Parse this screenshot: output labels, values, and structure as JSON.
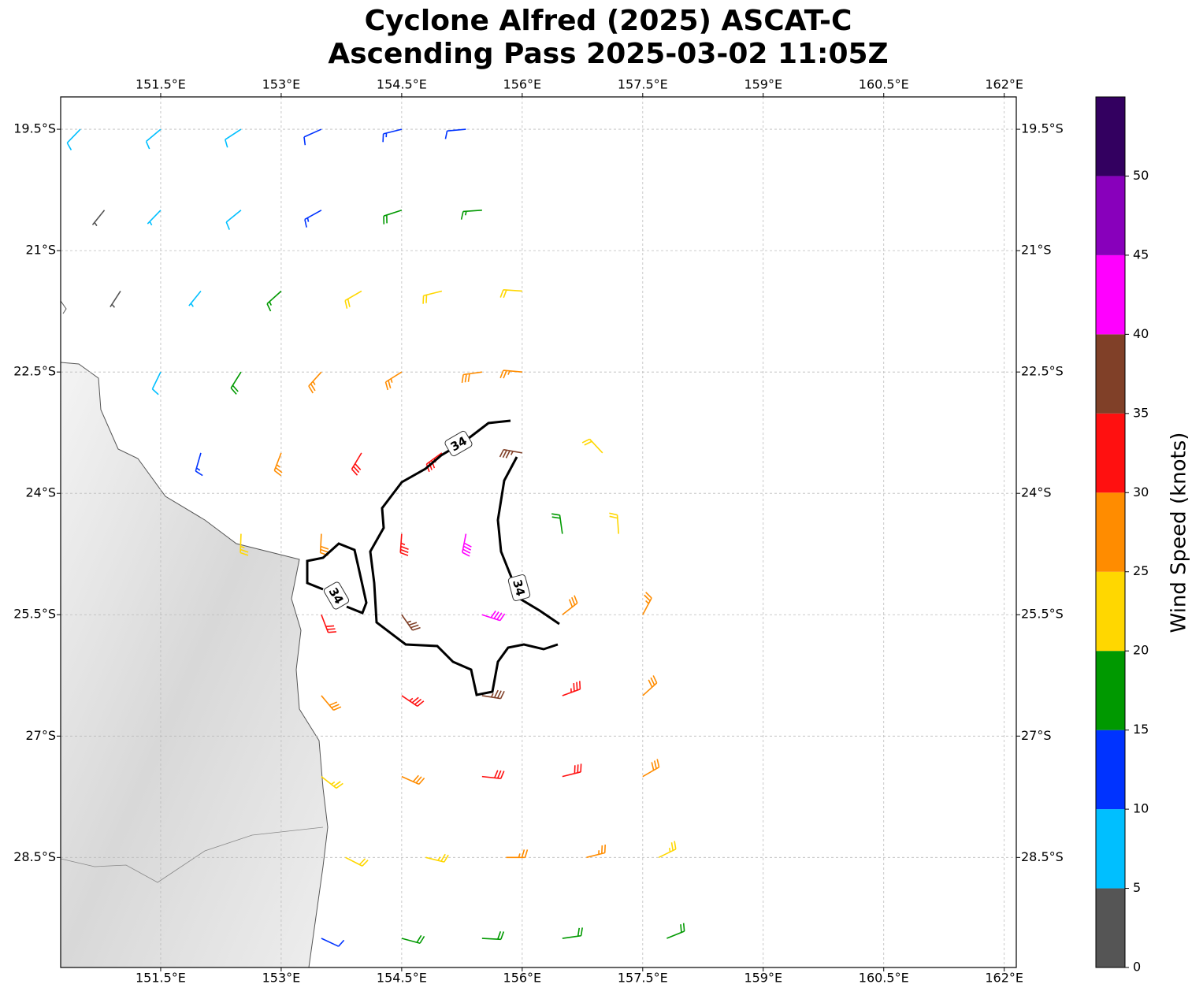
{
  "chart_data": {
    "type": "barbs",
    "title": [
      "Cyclone Alfred (2025) ASCAT-C",
      "Ascending Pass 2025-03-02 11:05Z"
    ],
    "xlim": [
      150.255,
      162.15
    ],
    "ylim": [
      -29.86,
      -19.1
    ],
    "grid": true,
    "xticks": [
      {
        "value": 151.5,
        "label": "151.5°E"
      },
      {
        "value": 153,
        "label": "153°E"
      },
      {
        "value": 154.5,
        "label": "154.5°E"
      },
      {
        "value": 156,
        "label": "156°E"
      },
      {
        "value": 157.5,
        "label": "157.5°E"
      },
      {
        "value": 159,
        "label": "159°E"
      },
      {
        "value": 160.5,
        "label": "160.5°E"
      },
      {
        "value": 162,
        "label": "162°E"
      }
    ],
    "yticks": [
      {
        "value": -19.5,
        "label": "19.5°S"
      },
      {
        "value": -21,
        "label": "21°S"
      },
      {
        "value": -22.5,
        "label": "22.5°S"
      },
      {
        "value": -24,
        "label": "24°S"
      },
      {
        "value": -25.5,
        "label": "25.5°S"
      },
      {
        "value": -27,
        "label": "27°S"
      },
      {
        "value": -28.5,
        "label": "28.5°S"
      }
    ],
    "contour_level": 34,
    "barbs": {
      "lon": [
        150.5,
        151.5,
        152.5,
        153.5,
        154.5,
        155.3,
        150.8,
        151.5,
        152.5,
        153.5,
        154.5,
        155.5,
        151,
        152,
        153,
        154,
        155,
        156,
        151.5,
        152.5,
        153.5,
        154.5,
        155.5,
        156,
        152,
        153,
        154,
        155,
        156,
        157,
        152.5,
        153.5,
        154.5,
        155.3,
        156.5,
        157.2,
        153.5,
        154.5,
        155.5,
        156.5,
        157.5,
        153.5,
        154.5,
        155.5,
        156.5,
        157.5,
        153.5,
        154.5,
        155.5,
        156.5,
        157.5,
        153.8,
        154.8,
        155.8,
        156.8,
        157.7,
        153.5,
        154.5,
        155.5,
        156.5,
        157.8
      ],
      "lat": [
        -19.5,
        -19.5,
        -19.5,
        -19.5,
        -19.5,
        -19.5,
        -20.5,
        -20.5,
        -20.5,
        -20.5,
        -20.5,
        -20.5,
        -21.5,
        -21.5,
        -21.5,
        -21.5,
        -21.5,
        -21.5,
        -22.5,
        -22.5,
        -22.5,
        -22.5,
        -22.5,
        -22.5,
        -23.5,
        -23.5,
        -23.5,
        -23.5,
        -23.5,
        -23.5,
        -24.5,
        -24.5,
        -24.5,
        -24.5,
        -24.5,
        -24.5,
        -25.5,
        -25.5,
        -25.5,
        -25.5,
        -25.5,
        -26.5,
        -26.5,
        -26.5,
        -26.5,
        -26.5,
        -27.5,
        -27.5,
        -27.5,
        -27.5,
        -27.5,
        -28.5,
        -28.5,
        -28.5,
        -28.5,
        -28.5,
        -29.5,
        -29.5,
        -29.5,
        -29.5,
        -29.5
      ],
      "speed": [
        8,
        8,
        8,
        12,
        13,
        12,
        3,
        7,
        9,
        13,
        18,
        17,
        3,
        7,
        17,
        22,
        22,
        22,
        8,
        18,
        27,
        27,
        28,
        27,
        14,
        26,
        30,
        33,
        37,
        22,
        23,
        28,
        33,
        40,
        19,
        22,
        30,
        37,
        42,
        28,
        27,
        28,
        33,
        35,
        33,
        28,
        23,
        28,
        30,
        32,
        28,
        22,
        23,
        25,
        27,
        23,
        11,
        18,
        18,
        18,
        18
      ],
      "direction": [
        224,
        230,
        237,
        246,
        256,
        265,
        219,
        224,
        231,
        241,
        252,
        266,
        213,
        219,
        228,
        240,
        256,
        274,
        206,
        212,
        222,
        238,
        262,
        275,
        196,
        201,
        211,
        234,
        280,
        317,
        182,
        183,
        184,
        191,
        352,
        356,
        159,
        145,
        108,
        52,
        28,
        140,
        124,
        99,
        70,
        48,
        128,
        114,
        96,
        76,
        60,
        117,
        104,
        90,
        76,
        64,
        115,
        105,
        93,
        82,
        68
      ]
    },
    "colorbar": {
      "label": "Wind Speed (knots)",
      "lim": [
        0,
        55
      ],
      "ticks": [
        0,
        5,
        10,
        15,
        20,
        25,
        30,
        35,
        40,
        45,
        50
      ],
      "colors": [
        "#555555",
        "#00bfff",
        "#0033ff",
        "#009900",
        "#ffd700",
        "#ff8c00",
        "#ff1010",
        "#804028",
        "#ff00ff",
        "#8800bb",
        "#330060"
      ]
    }
  }
}
